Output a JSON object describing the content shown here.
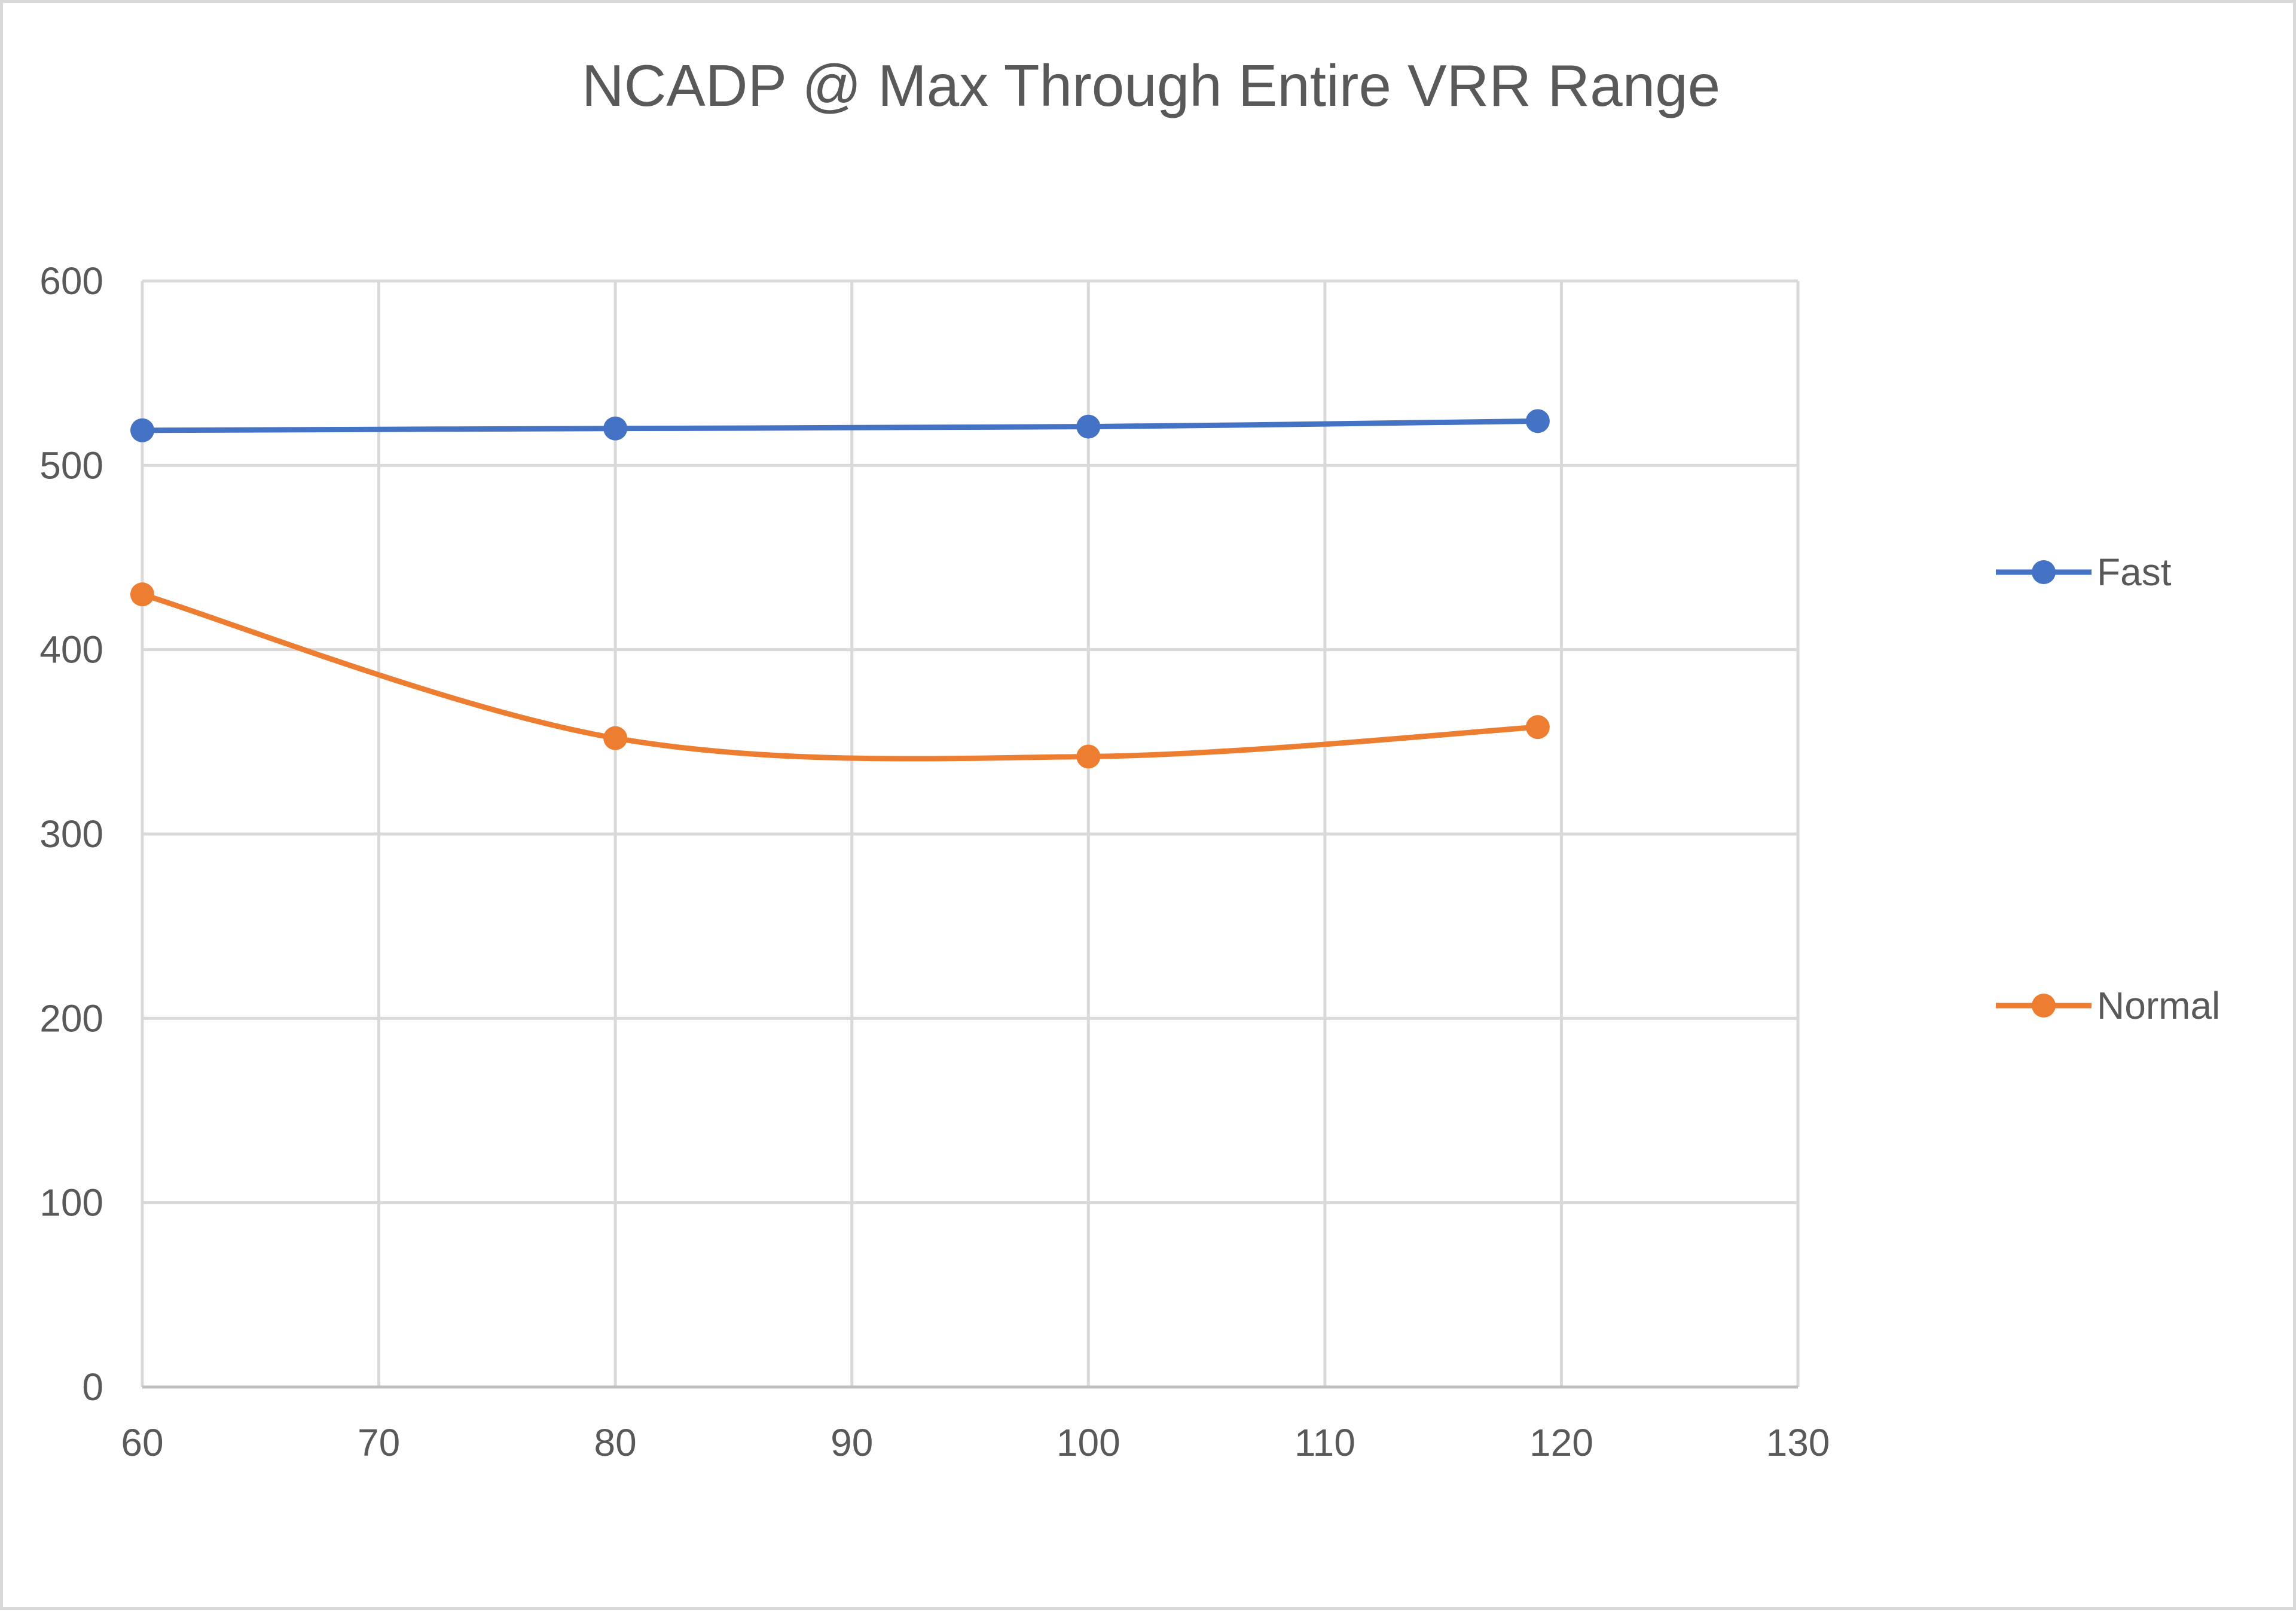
{
  "chart_data": {
    "type": "line",
    "title": "NCADP @ Max Through Entire VRR Range",
    "xlabel": "",
    "ylabel": "",
    "xlim": [
      60,
      130
    ],
    "ylim": [
      0,
      600
    ],
    "x_ticks": [
      "60",
      "70",
      "80",
      "90",
      "100",
      "110",
      "120",
      "130"
    ],
    "y_ticks": [
      "0",
      "100",
      "200",
      "300",
      "400",
      "500",
      "600"
    ],
    "grid": true,
    "smoothed": true,
    "legend_position": "right",
    "series": [
      {
        "name": "Fast",
        "color": "#4472c4",
        "points": [
          {
            "x": 60,
            "y": 519
          },
          {
            "x": 80,
            "y": 520
          },
          {
            "x": 100,
            "y": 521
          },
          {
            "x": 119,
            "y": 524
          }
        ]
      },
      {
        "name": "Normal",
        "color": "#ed7d31",
        "points": [
          {
            "x": 60,
            "y": 430
          },
          {
            "x": 80,
            "y": 352
          },
          {
            "x": 100,
            "y": 342
          },
          {
            "x": 119,
            "y": 358
          }
        ]
      }
    ]
  }
}
